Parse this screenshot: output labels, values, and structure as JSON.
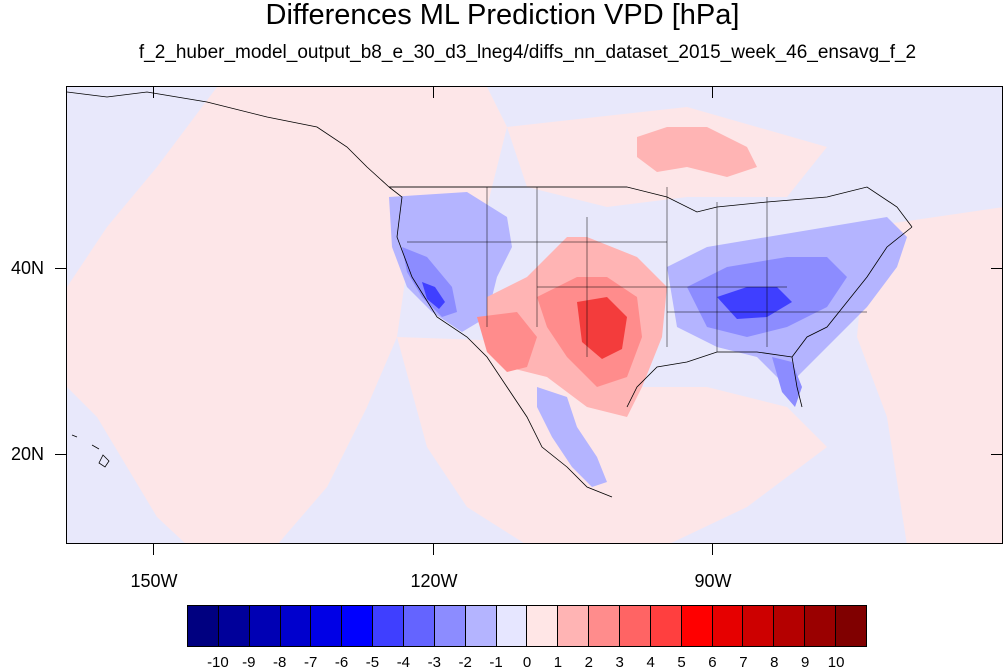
{
  "title": "Differences ML Prediction VPD [hPa]",
  "subtitle": "f_2_huber_model_output_b8_e_30_d3_lneg4/diffs_nn_dataset_2015_week_46_ensavg_f_2",
  "lat_labels": [
    "40N",
    "20N"
  ],
  "lon_labels": [
    "150W",
    "120W",
    "90W"
  ],
  "colorbar": {
    "labels": [
      "-10",
      "-9",
      "-8",
      "-7",
      "-6",
      "-5",
      "-4",
      "-3",
      "-2",
      "-1",
      "0",
      "1",
      "2",
      "3",
      "4",
      "5",
      "6",
      "7",
      "8",
      "9",
      "10"
    ],
    "colors": [
      "#000080",
      "#00009a",
      "#0000b4",
      "#0000cd",
      "#0000e6",
      "#0000ff",
      "#3f3fff",
      "#6464ff",
      "#8c8cff",
      "#b4b4ff",
      "#e6e6ff",
      "#ffe6e6",
      "#ffb4b4",
      "#ff8c8c",
      "#ff6464",
      "#ff3f3f",
      "#ff0000",
      "#e60000",
      "#cd0000",
      "#b40000",
      "#9a0000",
      "#800000"
    ]
  },
  "map_colors": {
    "background": "#e8e8fb",
    "light_pink": "#fde6e8",
    "pink": "#ffb4b4",
    "salmon": "#ff8c8c",
    "red": "#ff6464",
    "deep_red": "#f33c3c",
    "light_blue": "#b4b4ff",
    "blue": "#8c8cff",
    "deep_blue": "#6464ff",
    "darker_blue": "#3f3fff"
  }
}
